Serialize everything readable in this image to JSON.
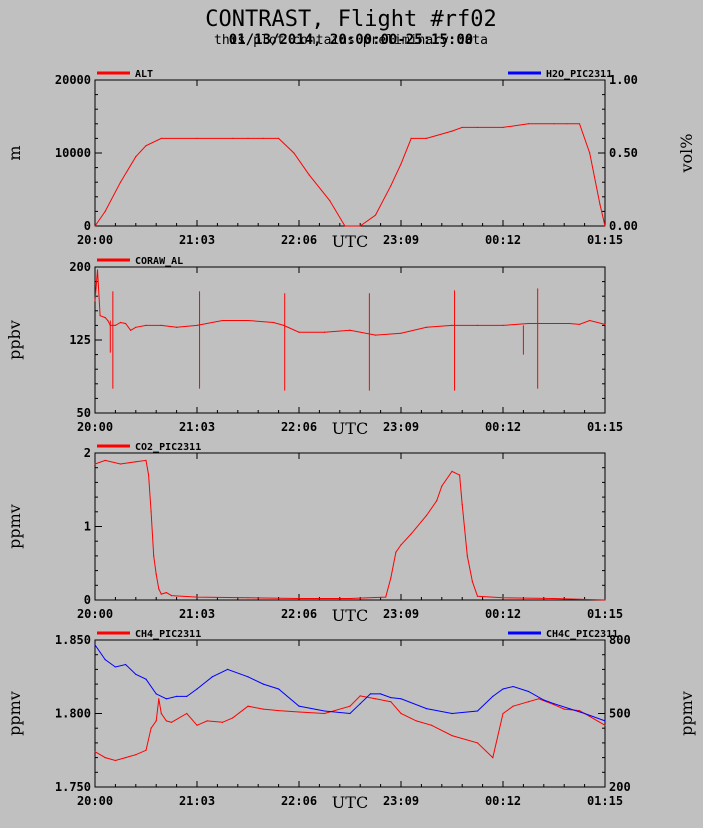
{
  "header": {
    "title": "CONTRAST, Flight #rf02",
    "subtitle_line1": "01/13/2014, 20:00:00-25:15:00",
    "subtitle_line2": "this plot contains preliminary data"
  },
  "colors": {
    "background": "#c0c0c0",
    "red_series": "#ff0000",
    "blue_series": "#0000ff",
    "axis": "#000000"
  },
  "chart_data": [
    {
      "type": "line",
      "id": "alt",
      "x_ticks": [
        "20:00",
        "21:03",
        "22:06",
        "23:09",
        "00:12",
        "01:15"
      ],
      "xlabel": "UTC",
      "ylabel": "m",
      "ylabel_right": "vol%",
      "ylim": [
        0,
        20000
      ],
      "yticks": [
        "0",
        "10000",
        "20000"
      ],
      "ylim_right": [
        0,
        1
      ],
      "yticks_right": [
        "0.00",
        "0.50",
        "1.00"
      ],
      "series": [
        {
          "name": "ALT",
          "color": "#ff0000",
          "axis": "left",
          "x": [
            0,
            0.02,
            0.05,
            0.08,
            0.1,
            0.13,
            0.2,
            0.27,
            0.3,
            0.33,
            0.36,
            0.39,
            0.42,
            0.46,
            0.49,
            0.52,
            0.55,
            0.58,
            0.6,
            0.62,
            0.65,
            0.7,
            0.72,
            0.75,
            0.8,
            0.85,
            0.9,
            0.925,
            0.95,
            0.97,
            0.99,
            1.0
          ],
          "y": [
            0,
            2000,
            6000,
            9500,
            11000,
            12000,
            12000,
            12000,
            12000,
            12000,
            12000,
            10000,
            7000,
            3500,
            0,
            0,
            1500,
            5500,
            8500,
            12000,
            12000,
            13000,
            13500,
            13500,
            13500,
            14000,
            14000,
            14000,
            14000,
            10000,
            3000,
            0
          ]
        },
        {
          "name": "H2O_PIC2311",
          "color": "#0000ff",
          "axis": "right",
          "x": [],
          "y": []
        }
      ]
    },
    {
      "type": "line",
      "id": "coraw",
      "x_ticks": [
        "20:00",
        "21:03",
        "22:06",
        "23:09",
        "00:12",
        "01:15"
      ],
      "xlabel": "UTC",
      "ylabel": "ppbv",
      "ylim": [
        50,
        200
      ],
      "yticks": [
        "50",
        "125",
        "200"
      ],
      "series": [
        {
          "name": "CORAW_AL",
          "color": "#ff0000",
          "x": [
            0,
            0.005,
            0.01,
            0.02,
            0.025,
            0.03,
            0.04,
            0.05,
            0.06,
            0.07,
            0.08,
            0.1,
            0.13,
            0.16,
            0.2,
            0.25,
            0.3,
            0.35,
            0.37,
            0.4,
            0.45,
            0.5,
            0.55,
            0.6,
            0.65,
            0.7,
            0.75,
            0.8,
            0.85,
            0.9,
            0.93,
            0.95,
            0.97,
            1.0
          ],
          "y": [
            165,
            197,
            150,
            148,
            145,
            140,
            140,
            143,
            142,
            135,
            138,
            140,
            140,
            138,
            140,
            145,
            145,
            143,
            140,
            133,
            133,
            135,
            130,
            132,
            138,
            140,
            140,
            140,
            142,
            142,
            142,
            141,
            145,
            141
          ]
        },
        {
          "name": "CORAW_AL spikes",
          "color": "#ff0000",
          "spikes": [
            {
              "x": 0.035,
              "top": 175,
              "bottom": 75
            },
            {
              "x": 0.205,
              "top": 175,
              "bottom": 75
            },
            {
              "x": 0.372,
              "top": 173,
              "bottom": 73
            },
            {
              "x": 0.538,
              "top": 173,
              "bottom": 73
            },
            {
              "x": 0.705,
              "top": 176,
              "bottom": 73
            },
            {
              "x": 0.868,
              "top": 178,
              "bottom": 75
            },
            {
              "x": 0.03,
              "top": 145,
              "bottom": 112
            },
            {
              "x": 0.84,
              "top": 140,
              "bottom": 110
            }
          ]
        }
      ]
    },
    {
      "type": "line",
      "id": "co2",
      "x_ticks": [
        "20:00",
        "21:03",
        "22:06",
        "23:09",
        "00:12",
        "01:15"
      ],
      "xlabel": "UTC",
      "ylabel": "ppmv",
      "ylim": [
        0,
        2
      ],
      "yticks": [
        "0",
        "1",
        "2"
      ],
      "series": [
        {
          "name": "CO2_PIC2311",
          "color": "#ff0000",
          "x": [
            0,
            0.02,
            0.05,
            0.08,
            0.1,
            0.105,
            0.11,
            0.115,
            0.12,
            0.125,
            0.13,
            0.14,
            0.15,
            0.2,
            0.3,
            0.4,
            0.5,
            0.57,
            0.58,
            0.59,
            0.6,
            0.62,
            0.65,
            0.67,
            0.68,
            0.7,
            0.715,
            0.72,
            0.73,
            0.74,
            0.75,
            0.8,
            0.9,
            0.95,
            1.0
          ],
          "y": [
            1.85,
            1.9,
            1.85,
            1.88,
            1.9,
            1.7,
            1.2,
            0.6,
            0.35,
            0.15,
            0.08,
            0.1,
            0.06,
            0.04,
            0.03,
            0.02,
            0.02,
            0.04,
            0.3,
            0.65,
            0.75,
            0.9,
            1.15,
            1.35,
            1.55,
            1.75,
            1.7,
            1.3,
            0.6,
            0.25,
            0.05,
            0.03,
            0.02,
            0.01,
            0.0
          ]
        }
      ]
    },
    {
      "type": "line",
      "id": "ch4",
      "x_ticks": [
        "20:00",
        "21:03",
        "22:06",
        "23:09",
        "00:12",
        "01:15"
      ],
      "xlabel": "UTC",
      "ylabel": "ppmv",
      "ylabel_right": "ppmv",
      "ylim": [
        1.75,
        1.85
      ],
      "yticks": [
        "1.750",
        "1.800",
        "1.850"
      ],
      "ylim_right": [
        200,
        800
      ],
      "yticks_right": [
        "200",
        "500",
        "800"
      ],
      "series": [
        {
          "name": "CH4_PIC2311",
          "color": "#ff0000",
          "axis": "left",
          "x": [
            0,
            0.02,
            0.04,
            0.06,
            0.08,
            0.1,
            0.11,
            0.12,
            0.125,
            0.13,
            0.14,
            0.15,
            0.18,
            0.2,
            0.22,
            0.25,
            0.27,
            0.3,
            0.33,
            0.36,
            0.4,
            0.45,
            0.5,
            0.52,
            0.55,
            0.58,
            0.6,
            0.63,
            0.66,
            0.7,
            0.75,
            0.78,
            0.8,
            0.82,
            0.85,
            0.87,
            0.9,
            0.92,
            0.95,
            0.97,
            1.0
          ],
          "y": [
            1.774,
            1.77,
            1.768,
            1.77,
            1.772,
            1.775,
            1.79,
            1.795,
            1.81,
            1.8,
            1.795,
            1.794,
            1.8,
            1.792,
            1.795,
            1.794,
            1.797,
            1.805,
            1.803,
            1.802,
            1.801,
            1.8,
            1.805,
            1.812,
            1.81,
            1.808,
            1.8,
            1.795,
            1.792,
            1.785,
            1.78,
            1.77,
            1.8,
            1.805,
            1.808,
            1.81,
            1.806,
            1.803,
            1.802,
            1.798,
            1.792
          ]
        },
        {
          "name": "CH4C_PIC2311",
          "color": "#0000ff",
          "axis": "right",
          "x": [
            0,
            0.02,
            0.04,
            0.06,
            0.08,
            0.1,
            0.12,
            0.14,
            0.16,
            0.18,
            0.2,
            0.23,
            0.26,
            0.3,
            0.33,
            0.36,
            0.4,
            0.45,
            0.5,
            0.52,
            0.54,
            0.56,
            0.58,
            0.6,
            0.65,
            0.7,
            0.75,
            0.78,
            0.8,
            0.82,
            0.85,
            0.88,
            0.9,
            0.93,
            0.96,
            1.0
          ],
          "y": [
            780,
            720,
            690,
            700,
            660,
            640,
            580,
            560,
            570,
            570,
            600,
            650,
            680,
            650,
            620,
            600,
            530,
            510,
            500,
            540,
            580,
            580,
            565,
            560,
            520,
            500,
            510,
            570,
            600,
            610,
            590,
            555,
            540,
            520,
            500,
            470
          ]
        }
      ]
    }
  ]
}
